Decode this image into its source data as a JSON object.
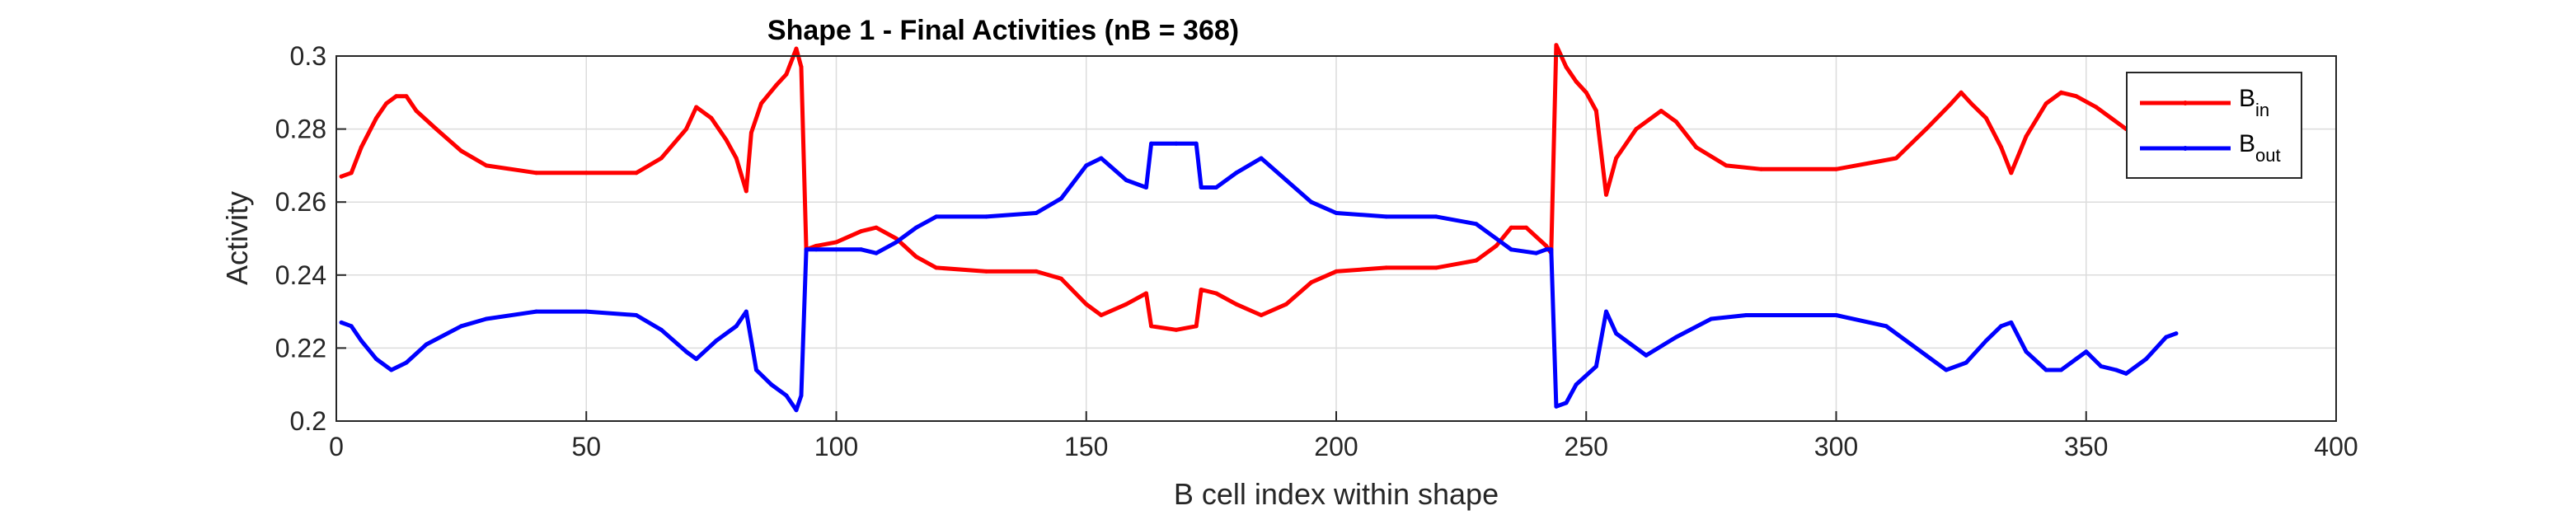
{
  "chart_data": {
    "type": "line",
    "title": "Shape 1 - Final Activities (nB = 368)",
    "xlabel": "B cell index within shape",
    "ylabel": "Activity",
    "xlim": [
      0,
      400
    ],
    "ylim": [
      0.2,
      0.3
    ],
    "xticks": [
      "0",
      "50",
      "100",
      "150",
      "200",
      "250",
      "300",
      "350",
      "400"
    ],
    "yticks": [
      "0.2",
      "0.22",
      "0.24",
      "0.26",
      "0.28",
      "0.3"
    ],
    "grid": true,
    "legend_position": "top-right",
    "series": [
      {
        "name": "B_in",
        "label_main": "B",
        "label_sub": "in",
        "color": "#ff0000",
        "points": [
          [
            1,
            0.267
          ],
          [
            3,
            0.268
          ],
          [
            5,
            0.275
          ],
          [
            8,
            0.283
          ],
          [
            10,
            0.287
          ],
          [
            12,
            0.289
          ],
          [
            14,
            0.289
          ],
          [
            16,
            0.285
          ],
          [
            20,
            0.28
          ],
          [
            25,
            0.274
          ],
          [
            30,
            0.27
          ],
          [
            40,
            0.268
          ],
          [
            50,
            0.268
          ],
          [
            60,
            0.268
          ],
          [
            65,
            0.272
          ],
          [
            70,
            0.28
          ],
          [
            72,
            0.286
          ],
          [
            75,
            0.283
          ],
          [
            78,
            0.277
          ],
          [
            80,
            0.272
          ],
          [
            82,
            0.263
          ],
          [
            83,
            0.279
          ],
          [
            85,
            0.287
          ],
          [
            88,
            0.292
          ],
          [
            90,
            0.295
          ],
          [
            92,
            0.302
          ],
          [
            93,
            0.297
          ],
          [
            94,
            0.247
          ],
          [
            96,
            0.248
          ],
          [
            100,
            0.249
          ],
          [
            105,
            0.252
          ],
          [
            108,
            0.253
          ],
          [
            112,
            0.25
          ],
          [
            116,
            0.245
          ],
          [
            120,
            0.242
          ],
          [
            130,
            0.241
          ],
          [
            140,
            0.241
          ],
          [
            145,
            0.239
          ],
          [
            150,
            0.232
          ],
          [
            153,
            0.229
          ],
          [
            158,
            0.232
          ],
          [
            162,
            0.235
          ],
          [
            163,
            0.226
          ],
          [
            168,
            0.225
          ],
          [
            172,
            0.226
          ],
          [
            173,
            0.236
          ],
          [
            176,
            0.235
          ],
          [
            180,
            0.232
          ],
          [
            185,
            0.229
          ],
          [
            190,
            0.232
          ],
          [
            195,
            0.238
          ],
          [
            200,
            0.241
          ],
          [
            210,
            0.242
          ],
          [
            220,
            0.242
          ],
          [
            228,
            0.244
          ],
          [
            232,
            0.248
          ],
          [
            235,
            0.253
          ],
          [
            238,
            0.253
          ],
          [
            242,
            0.248
          ],
          [
            243,
            0.246
          ],
          [
            244,
            0.303
          ],
          [
            246,
            0.297
          ],
          [
            248,
            0.293
          ],
          [
            250,
            0.29
          ],
          [
            252,
            0.285
          ],
          [
            254,
            0.262
          ],
          [
            256,
            0.272
          ],
          [
            260,
            0.28
          ],
          [
            265,
            0.285
          ],
          [
            268,
            0.282
          ],
          [
            272,
            0.275
          ],
          [
            278,
            0.27
          ],
          [
            285,
            0.269
          ],
          [
            300,
            0.269
          ],
          [
            312,
            0.272
          ],
          [
            318,
            0.28
          ],
          [
            323,
            0.287
          ],
          [
            325,
            0.29
          ],
          [
            327,
            0.287
          ],
          [
            330,
            0.283
          ],
          [
            333,
            0.275
          ],
          [
            335,
            0.268
          ],
          [
            338,
            0.278
          ],
          [
            342,
            0.287
          ],
          [
            345,
            0.29
          ],
          [
            348,
            0.289
          ],
          [
            352,
            0.286
          ],
          [
            355,
            0.283
          ],
          [
            358,
            0.28
          ],
          [
            362,
            0.284
          ],
          [
            366,
            0.287
          ],
          [
            368,
            0.286
          ]
        ]
      },
      {
        "name": "B_out",
        "label_main": "B",
        "label_sub": "out",
        "color": "#0000ff",
        "points": [
          [
            1,
            0.227
          ],
          [
            3,
            0.226
          ],
          [
            5,
            0.222
          ],
          [
            8,
            0.217
          ],
          [
            11,
            0.214
          ],
          [
            14,
            0.216
          ],
          [
            18,
            0.221
          ],
          [
            25,
            0.226
          ],
          [
            30,
            0.228
          ],
          [
            40,
            0.23
          ],
          [
            50,
            0.23
          ],
          [
            60,
            0.229
          ],
          [
            65,
            0.225
          ],
          [
            70,
            0.219
          ],
          [
            72,
            0.217
          ],
          [
            76,
            0.222
          ],
          [
            80,
            0.226
          ],
          [
            82,
            0.23
          ],
          [
            84,
            0.214
          ],
          [
            87,
            0.21
          ],
          [
            90,
            0.207
          ],
          [
            92,
            0.203
          ],
          [
            93,
            0.207
          ],
          [
            94,
            0.247
          ],
          [
            96,
            0.247
          ],
          [
            100,
            0.247
          ],
          [
            105,
            0.247
          ],
          [
            108,
            0.246
          ],
          [
            112,
            0.249
          ],
          [
            116,
            0.253
          ],
          [
            120,
            0.256
          ],
          [
            130,
            0.256
          ],
          [
            140,
            0.257
          ],
          [
            145,
            0.261
          ],
          [
            150,
            0.27
          ],
          [
            153,
            0.272
          ],
          [
            158,
            0.266
          ],
          [
            162,
            0.264
          ],
          [
            163,
            0.276
          ],
          [
            168,
            0.276
          ],
          [
            172,
            0.276
          ],
          [
            173,
            0.264
          ],
          [
            176,
            0.264
          ],
          [
            180,
            0.268
          ],
          [
            185,
            0.272
          ],
          [
            190,
            0.266
          ],
          [
            195,
            0.26
          ],
          [
            200,
            0.257
          ],
          [
            210,
            0.256
          ],
          [
            220,
            0.256
          ],
          [
            228,
            0.254
          ],
          [
            232,
            0.25
          ],
          [
            235,
            0.247
          ],
          [
            240,
            0.246
          ],
          [
            242,
            0.247
          ],
          [
            243,
            0.247
          ],
          [
            244,
            0.204
          ],
          [
            246,
            0.205
          ],
          [
            248,
            0.21
          ],
          [
            252,
            0.215
          ],
          [
            254,
            0.23
          ],
          [
            256,
            0.224
          ],
          [
            262,
            0.218
          ],
          [
            268,
            0.223
          ],
          [
            275,
            0.228
          ],
          [
            282,
            0.229
          ],
          [
            300,
            0.229
          ],
          [
            310,
            0.226
          ],
          [
            318,
            0.218
          ],
          [
            322,
            0.214
          ],
          [
            326,
            0.216
          ],
          [
            330,
            0.222
          ],
          [
            333,
            0.226
          ],
          [
            335,
            0.227
          ],
          [
            338,
            0.219
          ],
          [
            342,
            0.214
          ],
          [
            345,
            0.214
          ],
          [
            348,
            0.217
          ],
          [
            350,
            0.219
          ],
          [
            353,
            0.215
          ],
          [
            356,
            0.214
          ],
          [
            358,
            0.213
          ],
          [
            362,
            0.217
          ],
          [
            366,
            0.223
          ],
          [
            368,
            0.224
          ]
        ]
      }
    ]
  }
}
